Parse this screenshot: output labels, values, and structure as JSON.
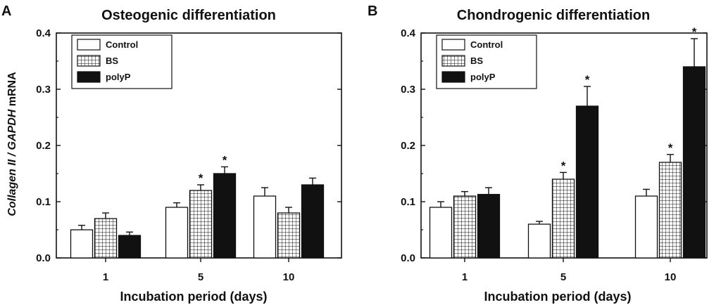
{
  "y_axis_label": {
    "italic_part": "Collagen II / GAPDH",
    "plain_part": " mRNA"
  },
  "colors": {
    "Control": "#ffffff",
    "BS": "grid",
    "polyP": "#111111",
    "axis": "#111111"
  },
  "chart_data": [
    {
      "panel": "A",
      "type": "bar",
      "title": "Osteogenic differentiation",
      "xlabel": "Incubation period (days)",
      "ylabel": "Collagen II / GAPDH mRNA",
      "categories": [
        "1",
        "5",
        "10"
      ],
      "ylim": [
        0,
        0.4
      ],
      "yticks": [
        0.0,
        0.1,
        0.2,
        0.3,
        0.4
      ],
      "ytick_labels": [
        "0.0",
        "0.1",
        "0.2",
        "0.3",
        "0.4"
      ],
      "legend": [
        "Control",
        "BS",
        "polyP"
      ],
      "legend_position": "top-left",
      "series": [
        {
          "name": "Control",
          "values": [
            0.05,
            0.09,
            0.11
          ],
          "errors": [
            0.008,
            0.008,
            0.015
          ],
          "significant": [
            false,
            false,
            false
          ]
        },
        {
          "name": "BS",
          "values": [
            0.07,
            0.12,
            0.08
          ],
          "errors": [
            0.01,
            0.01,
            0.01
          ],
          "significant": [
            false,
            true,
            false
          ]
        },
        {
          "name": "polyP",
          "values": [
            0.04,
            0.15,
            0.13
          ],
          "errors": [
            0.006,
            0.012,
            0.012
          ],
          "significant": [
            false,
            true,
            false
          ]
        }
      ],
      "significance_marker": "*"
    },
    {
      "panel": "B",
      "type": "bar",
      "title": "Chondrogenic differentiation",
      "xlabel": "Incubation period (days)",
      "ylabel": "",
      "categories": [
        "1",
        "5",
        "10"
      ],
      "ylim": [
        0,
        0.4
      ],
      "yticks": [
        0.0,
        0.1,
        0.2,
        0.3,
        0.4
      ],
      "ytick_labels": [
        "0.0",
        "0.1",
        "0.2",
        "0.3",
        "0.4"
      ],
      "legend": [
        "Control",
        "BS",
        "polyP"
      ],
      "legend_position": "top-left",
      "series": [
        {
          "name": "Control",
          "values": [
            0.09,
            0.06,
            0.11
          ],
          "errors": [
            0.01,
            0.005,
            0.012
          ],
          "significant": [
            false,
            false,
            false
          ]
        },
        {
          "name": "BS",
          "values": [
            0.11,
            0.14,
            0.17
          ],
          "errors": [
            0.008,
            0.012,
            0.014
          ],
          "significant": [
            false,
            true,
            true
          ]
        },
        {
          "name": "polyP",
          "values": [
            0.113,
            0.27,
            0.34
          ],
          "errors": [
            0.012,
            0.035,
            0.05
          ],
          "significant": [
            false,
            true,
            true
          ]
        }
      ],
      "significance_marker": "*"
    }
  ]
}
